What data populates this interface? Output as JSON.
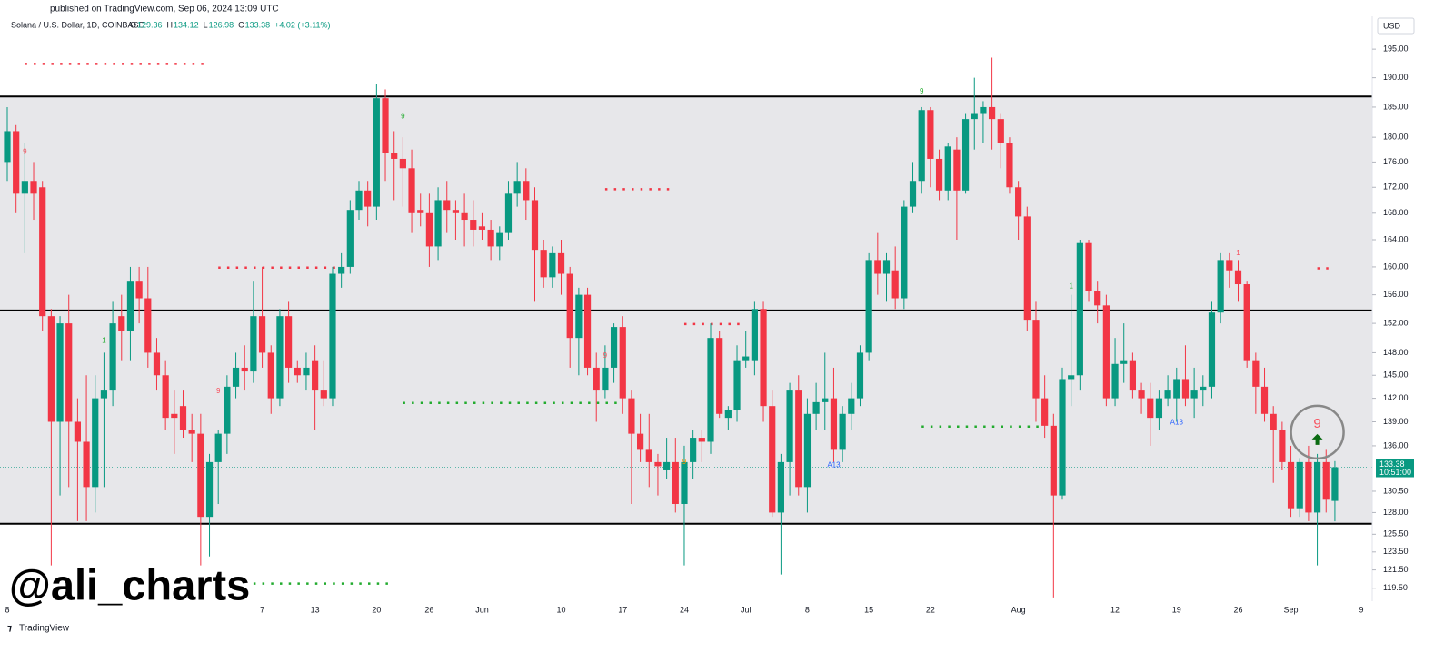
{
  "header": {
    "published": "published on TradingView.com, Sep 06, 2024 13:09 UTC",
    "symbol": "Solana / U.S. Dollar, 1D, COINBASE",
    "ohlc": [
      {
        "label": "O",
        "value": 129.36
      },
      {
        "label": "H",
        "value": 134.12
      },
      {
        "label": "L",
        "value": 126.98
      },
      {
        "label": "C",
        "value": 133.38
      }
    ],
    "change": "+4.02 (+3.11%)",
    "currency": "USD",
    "countdown": "10:51:00",
    "watermark": "@ali_charts",
    "logo": "TradingView"
  },
  "chart_data": {
    "type": "candlestick",
    "log_scale": true,
    "grid": false,
    "up_color": "#089981",
    "down_color": "#f23645",
    "categories": [
      "8",
      null,
      null,
      null,
      null,
      null,
      null,
      null,
      null,
      null,
      null,
      null,
      null,
      null,
      null,
      null,
      null,
      null,
      null,
      null,
      null,
      null,
      null,
      null,
      null,
      null,
      null,
      null,
      null,
      "7",
      null,
      null,
      null,
      null,
      null,
      "13",
      null,
      null,
      null,
      null,
      null,
      null,
      "20",
      null,
      null,
      null,
      null,
      null,
      "26",
      null,
      null,
      null,
      null,
      null,
      "Jun",
      null,
      null,
      null,
      null,
      null,
      null,
      null,
      null,
      "10",
      null,
      null,
      null,
      null,
      null,
      null,
      "17",
      null,
      null,
      null,
      null,
      null,
      null,
      "24",
      null,
      null,
      null,
      null,
      null,
      null,
      "Jul",
      null,
      null,
      null,
      null,
      null,
      null,
      "8",
      null,
      null,
      null,
      null,
      null,
      null,
      "15",
      null,
      null,
      null,
      null,
      null,
      null,
      "22",
      null,
      null,
      null,
      null,
      null,
      null,
      null,
      null,
      null,
      "Aug",
      null,
      null,
      null,
      null,
      null,
      null,
      null,
      null,
      null,
      null,
      "12",
      null,
      null,
      null,
      null,
      null,
      null,
      "19",
      null,
      null,
      null,
      null,
      null,
      null,
      "26",
      null,
      null,
      null,
      null,
      null,
      "Sep",
      null,
      null,
      null,
      null,
      null,
      null,
      null,
      "9"
    ],
    "candles": [
      [
        176,
        185,
        173,
        181
      ],
      [
        181,
        182,
        168,
        171
      ],
      [
        171,
        179,
        162,
        173
      ],
      [
        173,
        176,
        167,
        171
      ],
      [
        172,
        173,
        151,
        153
      ],
      [
        153,
        154,
        122,
        139
      ],
      [
        139,
        153,
        130,
        152
      ],
      [
        152,
        156,
        131,
        139
      ],
      [
        139,
        142,
        127,
        136.5
      ],
      [
        136.5,
        145,
        127,
        131
      ],
      [
        131,
        145,
        128,
        142
      ],
      [
        142,
        148,
        131,
        143
      ],
      [
        143,
        155,
        141,
        152
      ],
      [
        153,
        156,
        147,
        151
      ],
      [
        151,
        160,
        147,
        158
      ],
      [
        158,
        160,
        152,
        155.5
      ],
      [
        155.5,
        160,
        146,
        148
      ],
      [
        148,
        150,
        143,
        145
      ],
      [
        145,
        147,
        138,
        139.5
      ],
      [
        140,
        143,
        135,
        139.5
      ],
      [
        141,
        143,
        137,
        138
      ],
      [
        138,
        140,
        134,
        137.5
      ],
      [
        137.5,
        140,
        122,
        127.5
      ],
      [
        127.5,
        135,
        123,
        134
      ],
      [
        134,
        138,
        129,
        137.5
      ],
      [
        137.5,
        145,
        135,
        143.5
      ],
      [
        143.5,
        148,
        142,
        146
      ],
      [
        146,
        149,
        143,
        145.5
      ],
      [
        145.5,
        158,
        144,
        153
      ],
      [
        153,
        160,
        146,
        148
      ],
      [
        148,
        149,
        140,
        142
      ],
      [
        142,
        154,
        141,
        153
      ],
      [
        153,
        155,
        144,
        146
      ],
      [
        146,
        147,
        144,
        145
      ],
      [
        145,
        148,
        143,
        146
      ],
      [
        147,
        149,
        138,
        143
      ],
      [
        143,
        147,
        141,
        142
      ],
      [
        142,
        160,
        141,
        159
      ],
      [
        159,
        162,
        157,
        160
      ],
      [
        160,
        170,
        159,
        168.5
      ],
      [
        168.5,
        173,
        167,
        171.5
      ],
      [
        171.5,
        173,
        166,
        169
      ],
      [
        169,
        189,
        167,
        186.5
      ],
      [
        186.5,
        188,
        173,
        177.5
      ],
      [
        177.5,
        181,
        170,
        176.5
      ],
      [
        176.5,
        180,
        169,
        175
      ],
      [
        175,
        178,
        165,
        168
      ],
      [
        168.5,
        171,
        166,
        168
      ],
      [
        168,
        171,
        160,
        163
      ],
      [
        163,
        172,
        161,
        170
      ],
      [
        170,
        173,
        165,
        168.5
      ],
      [
        168.5,
        170,
        164,
        168
      ],
      [
        168,
        171,
        163,
        167
      ],
      [
        167,
        170,
        163,
        165.5
      ],
      [
        166,
        168,
        164,
        165.5
      ],
      [
        165.5,
        167,
        161,
        163
      ],
      [
        163,
        166,
        161,
        165
      ],
      [
        165,
        173,
        164,
        171
      ],
      [
        171,
        176,
        169,
        173
      ],
      [
        173,
        175,
        167,
        170
      ],
      [
        170,
        172,
        155,
        162.5
      ],
      [
        162.5,
        164,
        157,
        158.5
      ],
      [
        158.5,
        163,
        157,
        162
      ],
      [
        162,
        164,
        156,
        159
      ],
      [
        159,
        160,
        146,
        150
      ],
      [
        150,
        157,
        145,
        156
      ],
      [
        156,
        157,
        145,
        146
      ],
      [
        146,
        148,
        139,
        143
      ],
      [
        143,
        149,
        142,
        146
      ],
      [
        146,
        152,
        144,
        151.5
      ],
      [
        151.5,
        153,
        140,
        142
      ],
      [
        142,
        143,
        129,
        137.5
      ],
      [
        137.5,
        140,
        134,
        135.5
      ],
      [
        135.5,
        140,
        131,
        134
      ],
      [
        134,
        135,
        130,
        133.5
      ],
      [
        133,
        137,
        132,
        134
      ],
      [
        134,
        137,
        128,
        129
      ],
      [
        129,
        136,
        122,
        134
      ],
      [
        134,
        138,
        132,
        137
      ],
      [
        137,
        138,
        134,
        136.5
      ],
      [
        136.5,
        152,
        135,
        150
      ],
      [
        150,
        151,
        139.5,
        140
      ],
      [
        139.5,
        141,
        138,
        140.5
      ],
      [
        140.5,
        149,
        139,
        147
      ],
      [
        147,
        151,
        146,
        147.5
      ],
      [
        147,
        155,
        145,
        154
      ],
      [
        154,
        155,
        139,
        141
      ],
      [
        141,
        143,
        127.5,
        128
      ],
      [
        128,
        135,
        121,
        134
      ],
      [
        134,
        144,
        130,
        143
      ],
      [
        143,
        145,
        130,
        131
      ],
      [
        131,
        142,
        128,
        140
      ],
      [
        140,
        144,
        138,
        141.5
      ],
      [
        141.5,
        148,
        138,
        142
      ],
      [
        142,
        146,
        134,
        135.5
      ],
      [
        135.5,
        141,
        134,
        140
      ],
      [
        140,
        144,
        138,
        142
      ],
      [
        142,
        149,
        141,
        148
      ],
      [
        148,
        162,
        147,
        161
      ],
      [
        161,
        165,
        156,
        159
      ],
      [
        159,
        162,
        155,
        161
      ],
      [
        159.5,
        163,
        154,
        155.5
      ],
      [
        155.5,
        170,
        154,
        169
      ],
      [
        169,
        176,
        168,
        173
      ],
      [
        173,
        185,
        171,
        184.5
      ],
      [
        184.5,
        185,
        172,
        176.5
      ],
      [
        176.5,
        178,
        170,
        171.5
      ],
      [
        171.5,
        179,
        170,
        178.5
      ],
      [
        178,
        180,
        164,
        171.5
      ],
      [
        171.5,
        184,
        171,
        183
      ],
      [
        183,
        190,
        178,
        184
      ],
      [
        184,
        186,
        179,
        185
      ],
      [
        185,
        193.5,
        178,
        183
      ],
      [
        183,
        184,
        175,
        179
      ],
      [
        179,
        180,
        171,
        172
      ],
      [
        172,
        173,
        164,
        167.5
      ],
      [
        167.5,
        169,
        151,
        152.5
      ],
      [
        152.5,
        155,
        139,
        142
      ],
      [
        142,
        145,
        137,
        138.5
      ],
      [
        138.5,
        140,
        118.5,
        130
      ],
      [
        130,
        146,
        129.5,
        144.5
      ],
      [
        144.5,
        156,
        141,
        145
      ],
      [
        145,
        164,
        143,
        163.5
      ],
      [
        163.5,
        164,
        155,
        156.5
      ],
      [
        156.5,
        158,
        152,
        154.5
      ],
      [
        154.5,
        156,
        141,
        142
      ],
      [
        142,
        150,
        141,
        146.5
      ],
      [
        146.5,
        152,
        144,
        147
      ],
      [
        147,
        148,
        142,
        143
      ],
      [
        143,
        144,
        140,
        142
      ],
      [
        142,
        144,
        136,
        139.5
      ],
      [
        139.5,
        143,
        138,
        142
      ],
      [
        142,
        145,
        141,
        143
      ],
      [
        142,
        146,
        139,
        144.5
      ],
      [
        144.5,
        149,
        141,
        142
      ],
      [
        142,
        146,
        139.5,
        143
      ],
      [
        143,
        145,
        141,
        143.5
      ],
      [
        143.5,
        155,
        142,
        153.5
      ],
      [
        153.5,
        162,
        152,
        161
      ],
      [
        161,
        162,
        157,
        159.5
      ],
      [
        159.5,
        161,
        155,
        157.5
      ],
      [
        157.5,
        158,
        146,
        147
      ],
      [
        147,
        148,
        140,
        143.5
      ],
      [
        143.5,
        146,
        139,
        140
      ],
      [
        140,
        141,
        131.5,
        138
      ],
      [
        138,
        139,
        133,
        134
      ],
      [
        134,
        136,
        127.5,
        128.5
      ],
      [
        128.5,
        134.5,
        127.5,
        134
      ],
      [
        134,
        136,
        127,
        128
      ],
      [
        128,
        135,
        122,
        134
      ],
      [
        134,
        135.5,
        128,
        129.5
      ],
      [
        129.36,
        134.12,
        126.98,
        133.38
      ],
      null,
      null,
      null
    ],
    "ylim": [
      118.1,
      200.9
    ],
    "yticks": [
      {
        "value": 195,
        "label": "195.00"
      },
      {
        "value": 190,
        "label": "190.00"
      },
      {
        "value": 185,
        "label": "185.00"
      },
      {
        "value": 180,
        "label": "180.00"
      },
      {
        "value": 176,
        "label": "176.00"
      },
      {
        "value": 172,
        "label": "172.00"
      },
      {
        "value": 168,
        "label": "168.00"
      },
      {
        "value": 164,
        "label": "164.00"
      },
      {
        "value": 160,
        "label": "160.00"
      },
      {
        "value": 156,
        "label": "156.00"
      },
      {
        "value": 152,
        "label": "152.00"
      },
      {
        "value": 148,
        "label": "148.00"
      },
      {
        "value": 145,
        "label": "145.00"
      },
      {
        "value": 142,
        "label": "142.00"
      },
      {
        "value": 139,
        "label": "139.00"
      },
      {
        "value": 136,
        "label": "136.00"
      },
      {
        "value": 130.5,
        "label": "130.50"
      },
      {
        "value": 128,
        "label": "128.00"
      },
      {
        "value": 125.5,
        "label": "125.50"
      },
      {
        "value": 123.5,
        "label": "123.50"
      },
      {
        "value": 121.5,
        "label": "121.50"
      },
      {
        "value": 119.5,
        "label": "119.50"
      }
    ],
    "last_price": 133.38,
    "hlines": [
      186.8,
      153.8,
      126.7
    ],
    "levels": [
      {
        "value": 192.4,
        "start": 2,
        "end": 23,
        "color": "#f23645"
      },
      {
        "value": 159.9,
        "start": 24,
        "end": 38,
        "color": "#f23645"
      },
      {
        "value": 171.7,
        "start": 68,
        "end": 76,
        "color": "#f23645"
      },
      {
        "value": 151.9,
        "start": 77,
        "end": 84,
        "color": "#f23645"
      },
      {
        "value": 159.8,
        "start": 149,
        "end": 151,
        "color": "#f23645"
      },
      {
        "value": 141.4,
        "start": 45,
        "end": 70,
        "color": "#22ab2e"
      },
      {
        "value": 120,
        "start": 28,
        "end": 44,
        "color": "#22ab2e"
      },
      {
        "value": 138.4,
        "start": 104,
        "end": 118,
        "color": "#22ab2e"
      }
    ],
    "annotations": [
      {
        "text": "9",
        "index": 2,
        "price": 177.6,
        "color": "#f7525f"
      },
      {
        "text": "1",
        "index": 11,
        "price": 149.6,
        "color": "#22ab2e"
      },
      {
        "text": "9",
        "index": 24,
        "price": 142.9,
        "color": "#f7525f"
      },
      {
        "text": "9",
        "index": 45,
        "price": 183.4,
        "color": "#22ab2e"
      },
      {
        "text": "9",
        "index": 68,
        "price": 147.6,
        "color": "#f7525f"
      },
      {
        "text": "9",
        "index": 77,
        "price": 134.0,
        "color": "#ff9800"
      },
      {
        "text": "A13",
        "index": 94,
        "price": 133.6,
        "color": "#2962ff"
      },
      {
        "text": "9",
        "index": 104,
        "price": 187.6,
        "color": "#22ab2e"
      },
      {
        "text": "1",
        "index": 121,
        "price": 157.2,
        "color": "#22ab2e"
      },
      {
        "text": "A13",
        "index": 133,
        "price": 138.9,
        "color": "#2962ff"
      },
      {
        "text": "1",
        "index": 140,
        "price": 162.0,
        "color": "#f7525f"
      },
      {
        "text": "9",
        "index": 149,
        "price": 137.7,
        "color": "#f7525f",
        "highlight": true
      }
    ]
  }
}
